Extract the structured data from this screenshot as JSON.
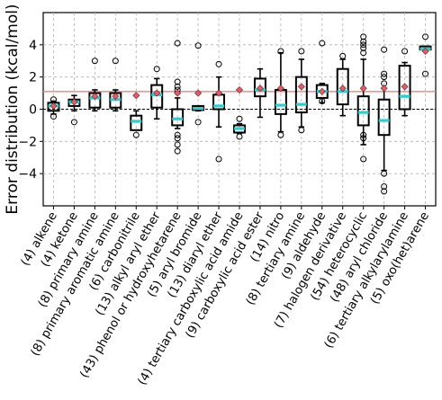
{
  "chart_data": {
    "type": "boxplot",
    "ylabel": "Error distribution (kcal/mol)",
    "ylim": [
      -6,
      6
    ],
    "yticks": [
      -4,
      -2,
      0,
      2,
      4
    ],
    "grid": true,
    "reference_line": 1.1,
    "colors": {
      "box": "#000000",
      "median": "#2ad0d0",
      "mean": "#d9606a",
      "reference": "#f07f7f",
      "zero": "#000000",
      "grid": "#b0b0b0"
    },
    "categories": [
      "(4) alkene",
      "(4) ketone",
      "(8) primary amine",
      "(8) primary aromatic amine",
      "(6) carbonitrile",
      "(13) alkyl aryl ether",
      "(43) phenol or hydroxyhetarene",
      "(5) aryl bromide",
      "(13) diaryl ether",
      "(4) tertiary carboxylic acid amide",
      "(9) carboxylic acid ester",
      "(14) nitro",
      "(8) tertiary amine",
      "(9) aldehyde",
      "(7) halogen derivative",
      "(54) heterocyclic",
      "(48) aryl chloride",
      "(6) tertiary alkylarylamine",
      "(5) oxo(het)arene"
    ],
    "boxes": [
      {
        "q1": -0.1,
        "median": 0.2,
        "q3": 0.4,
        "whislo": -0.3,
        "whishi": 0.5,
        "mean": 0.2,
        "fliers": [
          0.6,
          -0.45
        ]
      },
      {
        "q1": 0.2,
        "median": 0.45,
        "q3": 0.6,
        "whislo": -0.1,
        "whishi": 0.85,
        "mean": 0.45,
        "fliers": [
          -0.8
        ]
      },
      {
        "q1": 0.1,
        "median": 0.7,
        "q3": 1.0,
        "whislo": -0.1,
        "whishi": 1.2,
        "mean": 0.8,
        "fliers": [
          3.0
        ]
      },
      {
        "q1": 0.1,
        "median": 0.6,
        "q3": 1.0,
        "whislo": -0.1,
        "whishi": 1.2,
        "mean": 0.8,
        "fliers": [
          3.0
        ]
      },
      {
        "q1": -1.3,
        "median": -0.75,
        "q3": -0.4,
        "whislo": -1.3,
        "whishi": -0.1,
        "mean": 0.85,
        "fliers": [
          -1.6
        ]
      },
      {
        "q1": 0.1,
        "median": 0.9,
        "q3": 1.5,
        "whislo": -0.6,
        "whishi": 1.9,
        "mean": 1.0,
        "fliers": [
          2.5
        ]
      },
      {
        "q1": -1.0,
        "median": -0.6,
        "q3": 0.0,
        "whislo": -1.2,
        "whishi": 0.7,
        "mean": 1.0,
        "fliers": [
          4.1,
          1.7,
          1.4,
          1.2,
          -1.6,
          -1.8,
          -2.2,
          -2.6
        ]
      },
      {
        "q1": -0.05,
        "median": 0.05,
        "q3": 0.2,
        "whislo": -0.1,
        "whishi": 0.2,
        "mean": 1.0,
        "fliers": [
          3.95,
          -0.8
        ]
      },
      {
        "q1": 0.0,
        "median": 0.2,
        "q3": 0.9,
        "whislo": -1.1,
        "whishi": 2.0,
        "mean": 1.0,
        "fliers": [
          2.8,
          -3.1
        ]
      },
      {
        "q1": -1.45,
        "median": -1.2,
        "q3": -1.0,
        "whislo": -1.5,
        "whishi": -0.9,
        "mean": 1.2,
        "fliers": [
          -0.6,
          -1.7
        ]
      },
      {
        "q1": 0.8,
        "median": 1.2,
        "q3": 1.9,
        "whislo": -0.5,
        "whishi": 2.5,
        "mean": 1.3,
        "fliers": []
      },
      {
        "q1": -0.3,
        "median": 0.25,
        "q3": 1.2,
        "whislo": -1.4,
        "whishi": 3.5,
        "mean": 1.3,
        "fliers": [
          3.6,
          -1.6
        ]
      },
      {
        "q1": -0.2,
        "median": 0.3,
        "q3": 2.0,
        "whislo": -1.1,
        "whishi": 3.1,
        "mean": 1.4,
        "fliers": [
          3.6,
          -1.3
        ]
      },
      {
        "q1": 0.7,
        "median": 1.1,
        "q3": 1.5,
        "whislo": 0.4,
        "whishi": 1.6,
        "mean": 1.1,
        "fliers": [
          4.1,
          0.5
        ]
      },
      {
        "q1": 0.3,
        "median": 1.1,
        "q3": 2.5,
        "whislo": -0.4,
        "whishi": 3.1,
        "mean": 1.3,
        "fliers": [
          3.3
        ]
      },
      {
        "q1": -1.0,
        "median": -0.2,
        "q3": 0.8,
        "whislo": -2.2,
        "whishi": 3.1,
        "mean": 1.3,
        "fliers": [
          4.5,
          4.2,
          4.0,
          3.8,
          3.5,
          -1.6,
          -1.8,
          -3.1
        ]
      },
      {
        "q1": -1.6,
        "median": -0.7,
        "q3": 0.6,
        "whislo": -3.8,
        "whishi": 1.3,
        "mean": 1.3,
        "fliers": [
          3.7,
          2.2,
          2.0,
          1.6,
          -4.0,
          -4.8,
          -5.1
        ]
      },
      {
        "q1": 0.0,
        "median": 0.8,
        "q3": 2.7,
        "whislo": -0.4,
        "whishi": 2.9,
        "mean": 1.4,
        "fliers": [
          3.6
        ]
      },
      {
        "q1": 3.7,
        "median": 3.75,
        "q3": 3.9,
        "whislo": 3.7,
        "whishi": 3.9,
        "mean": 3.6,
        "fliers": [
          4.5,
          2.2
        ]
      }
    ]
  }
}
